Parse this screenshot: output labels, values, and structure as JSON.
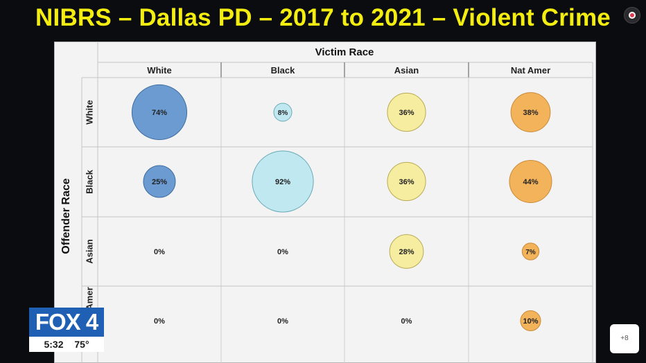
{
  "title": "NIBRS – Dallas PD – 2017 to 2021 – Violent Crime",
  "broadcast": {
    "logo_text": "FOX 4",
    "time": "5:32",
    "temperature": "75°"
  },
  "zoom_button": {
    "label": "+8"
  },
  "chart_data": {
    "type": "bubble-matrix",
    "col_axis_label": "Victim Race",
    "row_axis_label": "Offender Race",
    "columns": [
      "White",
      "Black",
      "Asian",
      "Nat Amer"
    ],
    "rows": [
      "White",
      "Black",
      "Asian",
      "Nat Amer"
    ],
    "values": [
      [
        74,
        8,
        36,
        38
      ],
      [
        25,
        92,
        36,
        44
      ],
      [
        0,
        0,
        28,
        7
      ],
      [
        0,
        0,
        0,
        10
      ]
    ],
    "value_suffix": "%",
    "column_colors": [
      "#6b9bd1",
      "#bfe8f0",
      "#f6eda0",
      "#f2b35a"
    ],
    "column_stroke": [
      "#3d6c9e",
      "#6aa9b8",
      "#b9ab55",
      "#c98a3a"
    ]
  }
}
